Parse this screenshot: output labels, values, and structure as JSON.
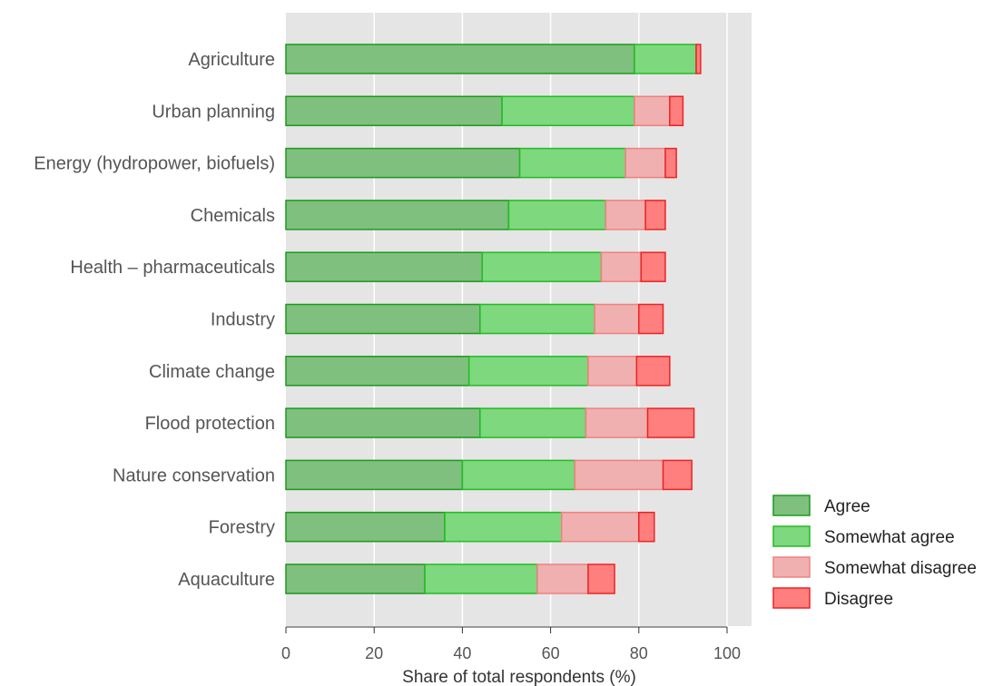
{
  "chart_data": {
    "type": "bar",
    "orientation": "horizontal",
    "stacked": true,
    "categories": [
      "Agriculture",
      "Urban planning",
      "Energy (hydropower, biofuels)",
      "Chemicals",
      "Health – pharmaceuticals",
      "Industry",
      "Climate change",
      "Flood protection",
      "Nature conservation",
      "Forestry",
      "Aquaculture"
    ],
    "series": [
      {
        "name": "Agree",
        "color": "#7fc07f",
        "stroke": "#1a9a1a",
        "values": [
          79,
          49,
          53,
          50.5,
          44.5,
          44,
          41.5,
          44,
          40,
          36,
          31.5
        ]
      },
      {
        "name": "Somewhat agree",
        "color": "#7ed87e",
        "stroke": "#22bb22",
        "values": [
          14,
          30,
          24,
          22,
          27,
          26,
          27,
          24,
          25.5,
          26.5,
          25.5
        ]
      },
      {
        "name": "Somewhat disagree",
        "color": "#f0b0b0",
        "stroke": "#f08080",
        "values": [
          0,
          8,
          9,
          9,
          9,
          10,
          11,
          14,
          20,
          17.5,
          11.5
        ]
      },
      {
        "name": "Disagree",
        "color": "#ff7f7f",
        "stroke": "#ee2222",
        "values": [
          1,
          3,
          2.5,
          4.5,
          5.5,
          5.5,
          7.5,
          10.5,
          6.5,
          3.5,
          6
        ]
      }
    ],
    "xlabel": "Share of total respondents (%)",
    "xlim": [
      0,
      105
    ],
    "xticks": [
      0,
      20,
      40,
      60,
      80,
      100
    ],
    "grid": true,
    "legend_position": "right"
  }
}
